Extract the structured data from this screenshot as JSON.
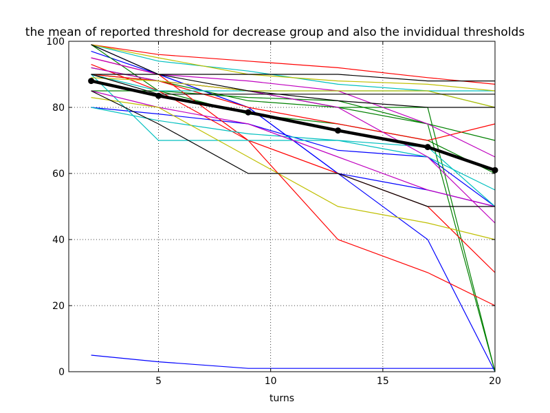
{
  "chart_data": {
    "type": "line",
    "title": "the mean of reported threshold for decrease group and also the invididual thresholds",
    "xlabel": "turns",
    "ylabel": "",
    "x": [
      2,
      5,
      9,
      13,
      17,
      20
    ],
    "xlim": [
      1,
      20
    ],
    "ylim": [
      0,
      100
    ],
    "xticks": [
      5,
      10,
      15,
      20
    ],
    "yticks": [
      0,
      20,
      40,
      60,
      80,
      100
    ],
    "grid": true,
    "mean_series": {
      "color": "#000000",
      "values": [
        88,
        83.5,
        78.5,
        73,
        68,
        61
      ]
    },
    "series": [
      {
        "color": "#0000ff",
        "values": [
          5,
          3,
          1,
          1,
          1,
          1
        ]
      },
      {
        "color": "#0000ff",
        "values": [
          97,
          90,
          80,
          60,
          40,
          0
        ]
      },
      {
        "color": "#0000ff",
        "values": [
          80,
          78,
          75,
          67,
          65,
          50
        ]
      },
      {
        "color": "#0000ff",
        "values": [
          99,
          90,
          80,
          60,
          55,
          50
        ]
      },
      {
        "color": "#008000",
        "values": [
          90,
          88,
          85,
          80,
          75,
          0
        ]
      },
      {
        "color": "#008000",
        "values": [
          85,
          85,
          83,
          82,
          75,
          70
        ]
      },
      {
        "color": "#008000",
        "values": [
          99,
          85,
          78,
          75,
          70,
          60
        ]
      },
      {
        "color": "#008000",
        "values": [
          92,
          88,
          82,
          80,
          80,
          0
        ]
      },
      {
        "color": "#ff0000",
        "values": [
          99,
          96,
          94,
          92,
          89,
          87
        ]
      },
      {
        "color": "#ff0000",
        "values": [
          95,
          90,
          70,
          40,
          30,
          20
        ]
      },
      {
        "color": "#ff0000",
        "values": [
          93,
          85,
          70,
          60,
          50,
          30
        ]
      },
      {
        "color": "#ff0000",
        "values": [
          90,
          88,
          80,
          75,
          70,
          75
        ]
      },
      {
        "color": "#00bfbf",
        "values": [
          99,
          94,
          91,
          87,
          85,
          80
        ]
      },
      {
        "color": "#00bfbf",
        "values": [
          90,
          70,
          70,
          70,
          65,
          55
        ]
      },
      {
        "color": "#00bfbf",
        "values": [
          90,
          85,
          85,
          85,
          85,
          85
        ]
      },
      {
        "color": "#00bfbf",
        "values": [
          80,
          76,
          72,
          70,
          68,
          50
        ]
      },
      {
        "color": "#bf00bf",
        "values": [
          95,
          90,
          88,
          85,
          75,
          65
        ]
      },
      {
        "color": "#bf00bf",
        "values": [
          92,
          88,
          85,
          80,
          65,
          45
        ]
      },
      {
        "color": "#bf00bf",
        "values": [
          85,
          80,
          75,
          65,
          55,
          50
        ]
      },
      {
        "color": "#bfbf00",
        "values": [
          83,
          80,
          65,
          50,
          45,
          40
        ]
      },
      {
        "color": "#bfbf00",
        "values": [
          89,
          88,
          85,
          85,
          85,
          80
        ]
      },
      {
        "color": "#bfbf00",
        "values": [
          99,
          95,
          90,
          88,
          87,
          85
        ]
      },
      {
        "color": "#000000",
        "values": [
          90,
          90,
          90,
          90,
          88,
          88
        ]
      },
      {
        "color": "#000000",
        "values": [
          99,
          90,
          85,
          82,
          80,
          80
        ]
      },
      {
        "color": "#000000",
        "values": [
          85,
          75,
          60,
          60,
          50,
          50
        ]
      },
      {
        "color": "#000000",
        "values": [
          90,
          84,
          84,
          84,
          84,
          84
        ]
      }
    ]
  }
}
